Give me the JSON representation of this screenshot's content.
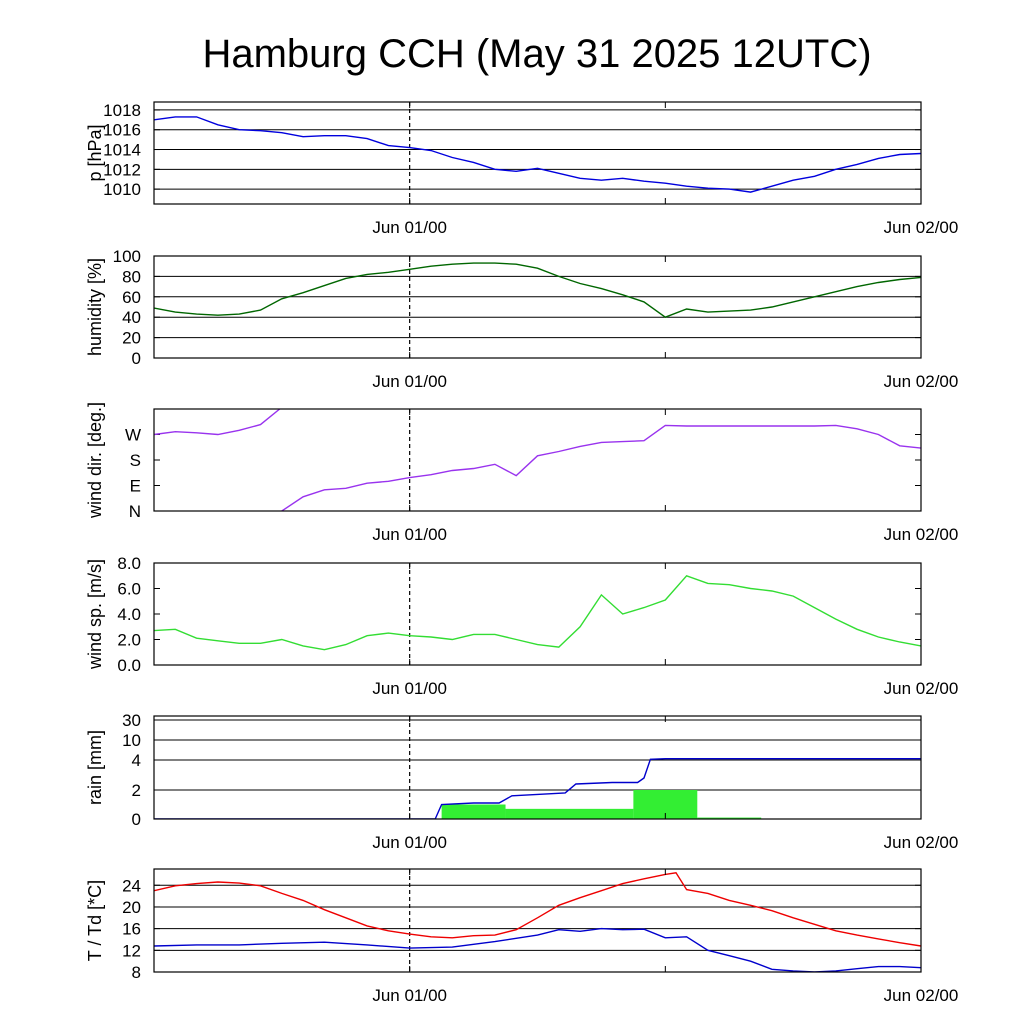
{
  "title": "Hamburg CCH (May 31 2025 12UTC)",
  "x_ticks": [
    "Jun 01/00",
    "Jun 02/00"
  ],
  "chart_data": [
    {
      "type": "line",
      "ylabel": "p [hPa]",
      "ylim": [
        1008.5,
        1018.8
      ],
      "y_ticks": [
        "1010",
        "1012",
        "1014",
        "1016",
        "1018"
      ],
      "grid": true,
      "series": [
        {
          "color": "#0000dd",
          "x": [
            0,
            1,
            2,
            3,
            4,
            5,
            6,
            7,
            8,
            9,
            10,
            11,
            12,
            13,
            14,
            15,
            16,
            17,
            18,
            19,
            20,
            21,
            22,
            23,
            24,
            25,
            26,
            27,
            28,
            29,
            30,
            31,
            32,
            33,
            34,
            35,
            36
          ],
          "y": [
            1017.0,
            1017.3,
            1017.3,
            1016.5,
            1016.0,
            1015.9,
            1015.7,
            1015.3,
            1015.4,
            1015.4,
            1015.1,
            1014.4,
            1014.2,
            1013.9,
            1013.2,
            1012.7,
            1012.0,
            1011.8,
            1012.1,
            1011.6,
            1011.1,
            1010.9,
            1011.1,
            1010.8,
            1010.6,
            1010.3,
            1010.1,
            1010.0,
            1009.7,
            1010.3,
            1010.9,
            1011.3,
            1012.0,
            1012.5,
            1013.1,
            1013.5,
            1013.6
          ]
        }
      ]
    },
    {
      "type": "line",
      "ylabel": "humidity [%]",
      "ylim": [
        0,
        100
      ],
      "y_ticks": [
        "0",
        "20",
        "40",
        "60",
        "80",
        "100"
      ],
      "grid": true,
      "series": [
        {
          "color": "#006600",
          "x": [
            0,
            1,
            2,
            3,
            4,
            5,
            6,
            7,
            8,
            9,
            10,
            11,
            12,
            13,
            14,
            15,
            16,
            17,
            18,
            19,
            20,
            21,
            22,
            23,
            24,
            25,
            26,
            27,
            28,
            29,
            30,
            31,
            32,
            33,
            34,
            35,
            36
          ],
          "y": [
            49,
            45,
            43,
            42,
            43,
            47,
            58,
            64,
            71,
            78,
            82,
            84,
            87,
            90,
            92,
            93,
            93,
            92,
            88,
            80,
            73,
            68,
            62,
            55,
            40,
            48,
            45,
            46,
            47,
            50,
            55,
            60,
            65,
            70,
            74,
            77,
            79
          ]
        }
      ]
    },
    {
      "type": "line",
      "ylabel": "wind dir. [deg.]",
      "ylim": [
        0,
        360
      ],
      "y_ticks": [
        "N",
        "E",
        "S",
        "W"
      ],
      "y_tick_values": [
        0,
        90,
        180,
        270
      ],
      "grid": false,
      "series": [
        {
          "color": "#9933ee",
          "x": [
            0,
            1,
            2,
            3,
            4,
            5,
            5.9,
            6,
            7,
            8,
            9,
            10,
            11,
            12,
            13,
            14,
            15,
            16,
            17,
            18,
            19,
            20,
            21,
            22,
            23,
            24,
            25,
            26,
            27,
            28,
            29,
            30,
            31,
            32,
            33,
            34,
            35,
            36
          ],
          "y": [
            270,
            280,
            276,
            270,
            285,
            305,
            360,
            0,
            50,
            75,
            80,
            98,
            105,
            118,
            128,
            143,
            150,
            165,
            125,
            195,
            210,
            228,
            242,
            245,
            248,
            302,
            300,
            300,
            300,
            300,
            300,
            300,
            300,
            302,
            290,
            270,
            230,
            222
          ]
        }
      ]
    },
    {
      "type": "line",
      "ylabel": "wind sp. [m/s]",
      "ylim": [
        0,
        8
      ],
      "y_ticks": [
        "0.0",
        "2.0",
        "4.0",
        "6.0",
        "8.0"
      ],
      "grid": false,
      "series": [
        {
          "color": "#33dd33",
          "x": [
            0,
            1,
            2,
            3,
            4,
            5,
            6,
            7,
            8,
            9,
            10,
            11,
            12,
            13,
            14,
            15,
            16,
            17,
            18,
            19,
            20,
            21,
            22,
            23,
            24,
            25,
            26,
            27,
            28,
            29,
            30,
            31,
            32,
            33,
            34,
            35,
            36
          ],
          "y": [
            2.7,
            2.8,
            2.1,
            1.9,
            1.7,
            1.7,
            2.0,
            1.5,
            1.2,
            1.6,
            2.3,
            2.5,
            2.3,
            2.2,
            2.0,
            2.4,
            2.4,
            2.0,
            1.6,
            1.4,
            3.0,
            5.5,
            4.0,
            4.5,
            5.1,
            7.0,
            6.4,
            6.3,
            6.0,
            5.8,
            5.4,
            4.5,
            3.6,
            2.8,
            2.2,
            1.8,
            1.5
          ]
        }
      ]
    },
    {
      "type": "bar",
      "ylabel": "rain [mm]",
      "ylim": [
        0,
        30
      ],
      "y_ticks": [
        "0",
        "2",
        "4",
        "10",
        "30"
      ],
      "y_tick_values": [
        0,
        2,
        4,
        10,
        30
      ],
      "grid": true,
      "bars": {
        "color": "#33ee33",
        "from": [
          13.5,
          16.5,
          22.5,
          25.5
        ],
        "to": [
          16.5,
          22.5,
          25.5,
          28.5
        ],
        "values": [
          1.0,
          0.7,
          2.0,
          0.1
        ]
      },
      "series": [
        {
          "color": "#0000cc",
          "x": [
            0,
            13.2,
            13.5,
            15,
            16.2,
            16.8,
            18,
            19.3,
            19.8,
            21.5,
            22.7,
            23.0,
            23.3,
            24,
            30,
            36
          ],
          "y": [
            0,
            0,
            1.0,
            1.1,
            1.1,
            1.6,
            1.7,
            1.8,
            2.4,
            2.5,
            2.5,
            2.8,
            4.2,
            4.4,
            4.4,
            4.4
          ]
        }
      ]
    },
    {
      "type": "line",
      "ylabel": "T / Td [*C]",
      "ylim": [
        8,
        27
      ],
      "y_ticks": [
        "8",
        "12",
        "16",
        "20",
        "24"
      ],
      "grid": true,
      "series": [
        {
          "color": "#ee0000",
          "x": [
            0,
            1,
            2,
            3,
            4,
            5,
            6,
            7,
            8,
            9,
            10,
            11,
            12,
            13,
            14,
            15,
            16,
            17,
            18,
            19,
            20,
            21,
            22,
            23,
            24,
            24.5,
            25,
            26,
            27,
            28,
            29,
            30,
            31,
            32,
            33,
            34,
            35,
            36
          ],
          "y": [
            23.0,
            23.9,
            24.3,
            24.6,
            24.4,
            23.9,
            22.5,
            21.2,
            19.5,
            18.0,
            16.5,
            15.6,
            15.0,
            14.5,
            14.3,
            14.7,
            14.8,
            15.8,
            18.0,
            20.3,
            21.7,
            23.0,
            24.3,
            25.2,
            26.0,
            26.3,
            23.2,
            22.5,
            21.2,
            20.3,
            19.3,
            18.0,
            16.8,
            15.6,
            14.8,
            14.1,
            13.4,
            12.8
          ]
        },
        {
          "color": "#0000cc",
          "x": [
            0,
            2,
            4,
            6,
            8,
            10,
            12,
            14,
            16,
            18,
            19,
            20,
            21,
            22,
            23,
            24,
            25,
            26,
            27,
            28,
            29,
            30,
            31,
            32,
            33,
            34,
            35,
            36
          ],
          "y": [
            12.8,
            13.0,
            13.0,
            13.3,
            13.5,
            13.0,
            12.4,
            12.6,
            13.6,
            14.8,
            15.8,
            15.5,
            16.0,
            15.8,
            15.9,
            14.3,
            14.5,
            12.0,
            11.0,
            10.0,
            8.5,
            8.2,
            8.0,
            8.2,
            8.6,
            9.0,
            9.0,
            8.8
          ]
        }
      ]
    }
  ]
}
